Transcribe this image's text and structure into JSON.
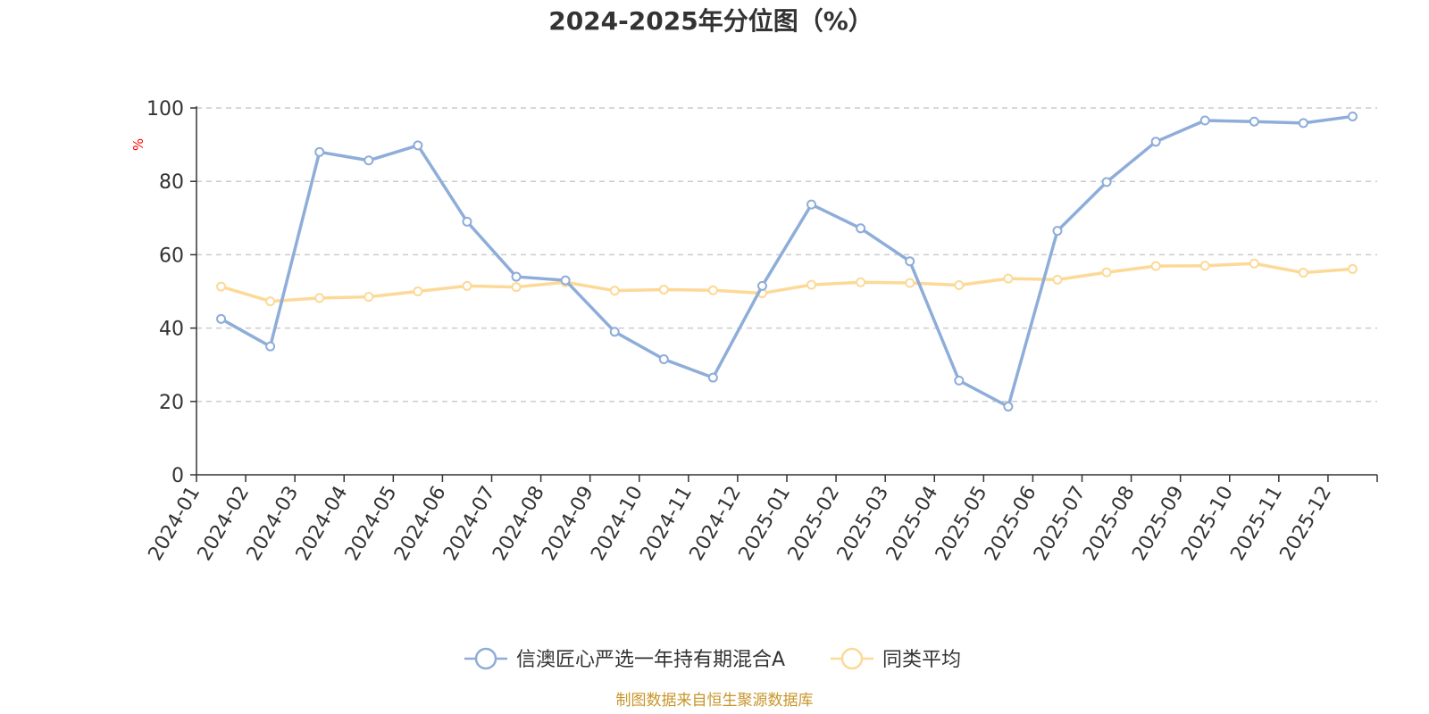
{
  "chart_data": {
    "type": "line",
    "title": "2024-2025年分位图（%）",
    "ylabel": "%",
    "ylim": [
      0,
      100
    ],
    "yticks": [
      "0",
      "20",
      "40",
      "60",
      "80",
      "100"
    ],
    "grid": true,
    "legend_position": "bottom-center",
    "categories": [
      "2024-01",
      "2024-02",
      "2024-03",
      "2024-04",
      "2024-05",
      "2024-06",
      "2024-07",
      "2024-08",
      "2024-09",
      "2024-10",
      "2024-11",
      "2024-12",
      "2025-01",
      "2025-02",
      "2025-03",
      "2025-04",
      "2025-05",
      "2025-06",
      "2025-07",
      "2025-08",
      "2025-09",
      "2025-10",
      "2025-11",
      "2025-12"
    ],
    "series": [
      {
        "name": "信澳匠心严选一年持有期混合A",
        "color": "#8eadd9",
        "values": [
          42.5,
          35,
          88,
          85.7,
          89.8,
          69,
          54,
          53,
          39,
          31.5,
          26.5,
          51.5,
          73.7,
          67.2,
          58.2,
          25.7,
          18.6,
          66.5,
          79.8,
          90.8,
          96.6,
          96.3,
          95.9,
          97.7
        ]
      },
      {
        "name": "同类平均",
        "color": "#fcd997",
        "values": [
          51.3,
          47.3,
          48.2,
          48.5,
          50,
          51.5,
          51.2,
          52.5,
          50.2,
          50.5,
          50.3,
          49.5,
          51.8,
          52.5,
          52.3,
          51.7,
          53.5,
          53.2,
          55.2,
          56.9,
          57,
          57.6,
          55.1,
          56.1
        ]
      }
    ]
  },
  "source_text": "制图数据来自恒生聚源数据库"
}
